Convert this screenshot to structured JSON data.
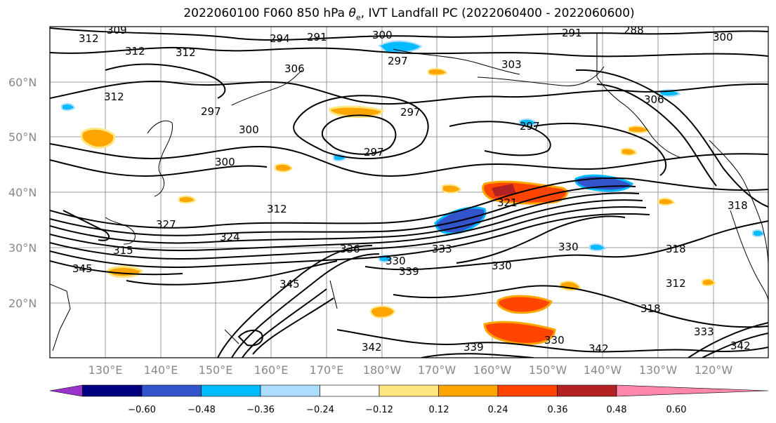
{
  "title_main": "2022060100 F060 850 hPa ",
  "title_symbol": "θ",
  "title_sub": "e",
  "title_rest": ", IVT Landfall PC (2022060400 - 2022060600)",
  "lat_labels": [
    "60°N",
    "50°N",
    "40°N",
    "30°N",
    "20°N"
  ],
  "lon_labels": [
    "130°E",
    "140°E",
    "150°E",
    "160°E",
    "170°E",
    "180°W",
    "170°W",
    "160°W",
    "150°W",
    "140°W",
    "130°W",
    "120°W"
  ],
  "colorbar": {
    "colors": [
      "#9933cc",
      "#000080",
      "#3355cc",
      "#00bbff",
      "#aaddff",
      "#ffffff",
      "#ffe680",
      "#ffa500",
      "#ff4500",
      "#b22222",
      "#ff88aa"
    ],
    "tick_labels": [
      "−0.60",
      "−0.48",
      "−0.36",
      "−0.24",
      "−0.12",
      "0.12",
      "0.24",
      "0.36",
      "0.48",
      "0.60"
    ]
  },
  "contour_labels": [
    "309",
    "312",
    "312",
    "312",
    "294",
    "291",
    "300",
    "297",
    "306",
    "303",
    "291",
    "288",
    "300",
    "312",
    "297",
    "300",
    "297",
    "297",
    "297",
    "306",
    "300",
    "312",
    "321",
    "327",
    "324",
    "315",
    "345",
    "336",
    "330",
    "333",
    "330",
    "330",
    "318",
    "318",
    "312",
    "318",
    "339",
    "342",
    "339",
    "342",
    "330",
    "333",
    "345",
    "342"
  ]
}
